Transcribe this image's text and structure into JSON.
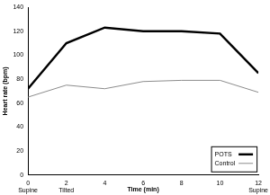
{
  "chart_data": {
    "type": "line",
    "x_label": "Time (min)",
    "y_label": "Heart rate (bpm)",
    "x": [
      0,
      2,
      4,
      6,
      8,
      10,
      12
    ],
    "series": [
      {
        "name": "POTS",
        "color": "#000000",
        "line_style": "solid",
        "values": [
          72,
          110,
          123,
          120,
          120,
          118,
          85
        ]
      },
      {
        "name": "Control",
        "color": "#8c8c8c",
        "line_style": "solid",
        "values": [
          65,
          75,
          72,
          78,
          79,
          79,
          69
        ]
      }
    ],
    "annotations": [
      {
        "x": 0,
        "text": "Supine"
      },
      {
        "x": 2,
        "text": "Tilted"
      },
      {
        "x": 12,
        "text": "Supine"
      }
    ],
    "xlim": [
      0,
      12
    ],
    "xticks": [
      0,
      2,
      4,
      6,
      8,
      10,
      12
    ],
    "ylim": [
      0,
      140
    ],
    "yticks": [
      0,
      20,
      40,
      60,
      80,
      100,
      120,
      140
    ],
    "grid": false,
    "legend": "lower right"
  }
}
